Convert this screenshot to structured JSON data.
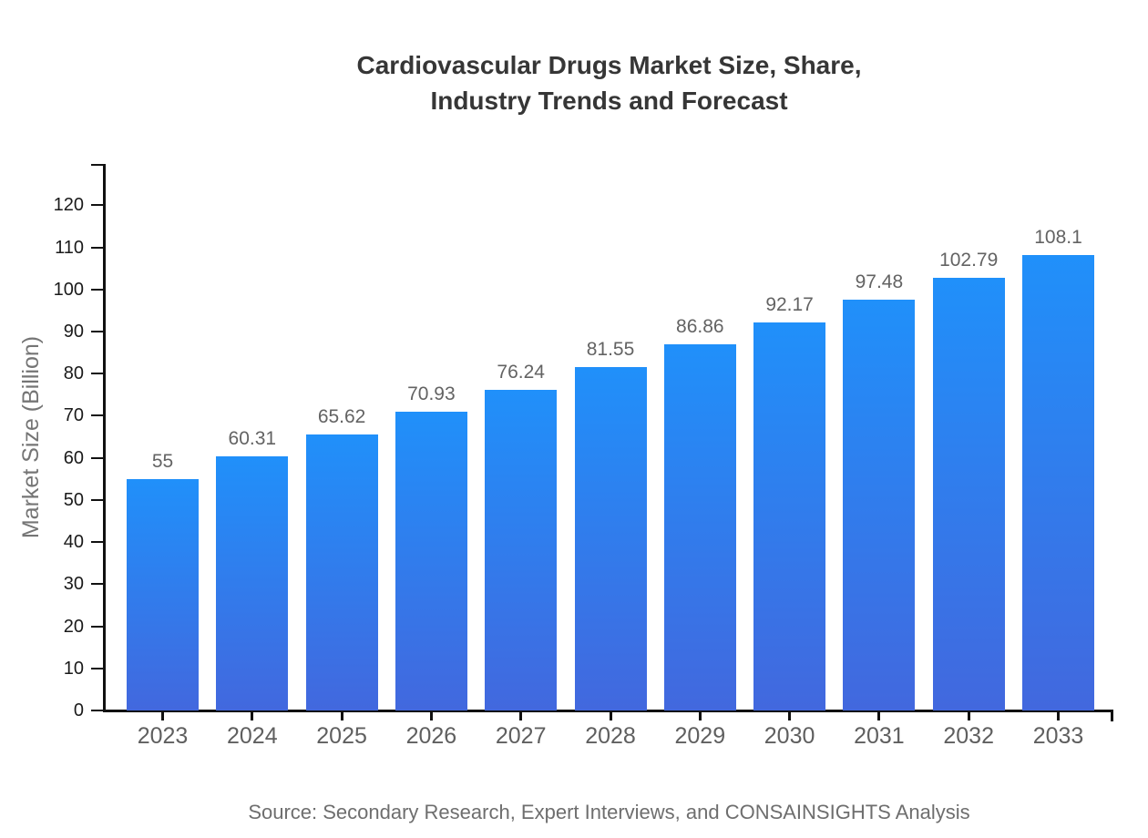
{
  "title_lines": [
    "Cardiovascular Drugs Market Size, Share,",
    "Industry Trends and Forecast"
  ],
  "source_text": "Source: Secondary Research, Expert Interviews, and CONSAINSIGHTS Analysis",
  "chart_data": {
    "type": "bar",
    "title": "Cardiovascular Drugs Market Size, Share, Industry Trends and Forecast",
    "xlabel": "",
    "ylabel": "Market Size (Billion)",
    "categories": [
      "2023",
      "2024",
      "2025",
      "2026",
      "2027",
      "2028",
      "2029",
      "2030",
      "2031",
      "2032",
      "2033"
    ],
    "values": [
      55,
      60.31,
      65.62,
      70.93,
      76.24,
      81.55,
      86.86,
      92.17,
      97.48,
      102.79,
      108.1
    ],
    "value_labels": [
      "55",
      "60.31",
      "65.62",
      "70.93",
      "76.24",
      "81.55",
      "86.86",
      "92.17",
      "97.48",
      "102.79",
      "108.1"
    ],
    "yticks": [
      0,
      10,
      20,
      30,
      40,
      50,
      60,
      70,
      80,
      90,
      100,
      110,
      120
    ],
    "ylim": [
      0,
      130
    ],
    "grid": false,
    "legend": null,
    "colors": {
      "bar_gradient_top": "#2090fa",
      "bar_gradient_bottom": "#4268de",
      "axis": "#111111",
      "y_tick_label": "#1a1a1a",
      "x_tick_label": "#5f5f5f",
      "value_label": "#636363",
      "title": "#363636",
      "ylabel": "#757575",
      "source": "#6e6e6e",
      "background": "#ffffff"
    }
  }
}
